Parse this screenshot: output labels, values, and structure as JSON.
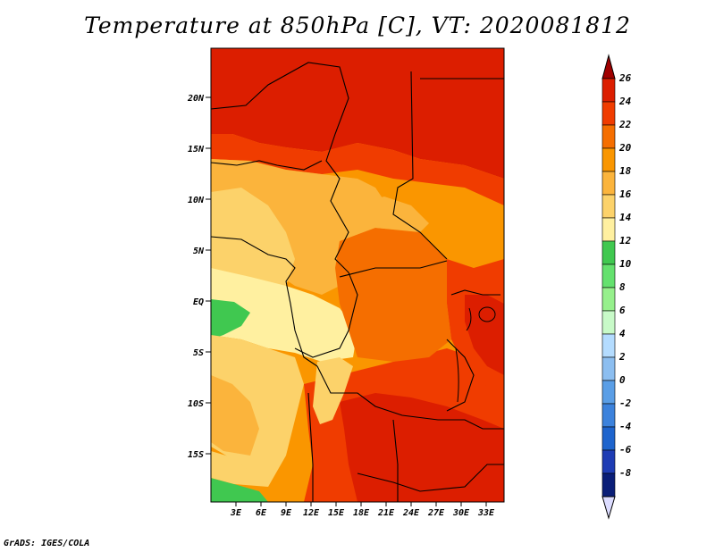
{
  "title": "Temperature at 850hPa [C], VT: 2020081812",
  "footer": "GrADS: IGES/COLA",
  "map": {
    "lat_labels": [
      "20N",
      "15N",
      "10N",
      "5N",
      "EQ",
      "5S",
      "10S",
      "15S"
    ],
    "lon_labels": [
      "3E",
      "6E",
      "9E",
      "12E",
      "15E",
      "18E",
      "21E",
      "24E",
      "27E",
      "30E",
      "33E"
    ],
    "field": "temperature_850hPa",
    "units": "C"
  },
  "colorbar": {
    "labels": [
      "26",
      "24",
      "22",
      "20",
      "18",
      "16",
      "14",
      "12",
      "10",
      "8",
      "6",
      "4",
      "2",
      "0",
      "-2",
      "-4",
      "-6",
      "-8"
    ],
    "colors": [
      "#a00000",
      "#dc1e00",
      "#f03c00",
      "#f56e00",
      "#fa9600",
      "#fbb43c",
      "#fcd26a",
      "#fff0a0",
      "#40c850",
      "#64e16e",
      "#96f08c",
      "#c8fac8",
      "#b4dcff",
      "#8cbef0",
      "#5a9ee6",
      "#3c82dc",
      "#1e64cd",
      "#1e3cb4",
      "#0a1e78",
      "#dcdcff"
    ]
  }
}
